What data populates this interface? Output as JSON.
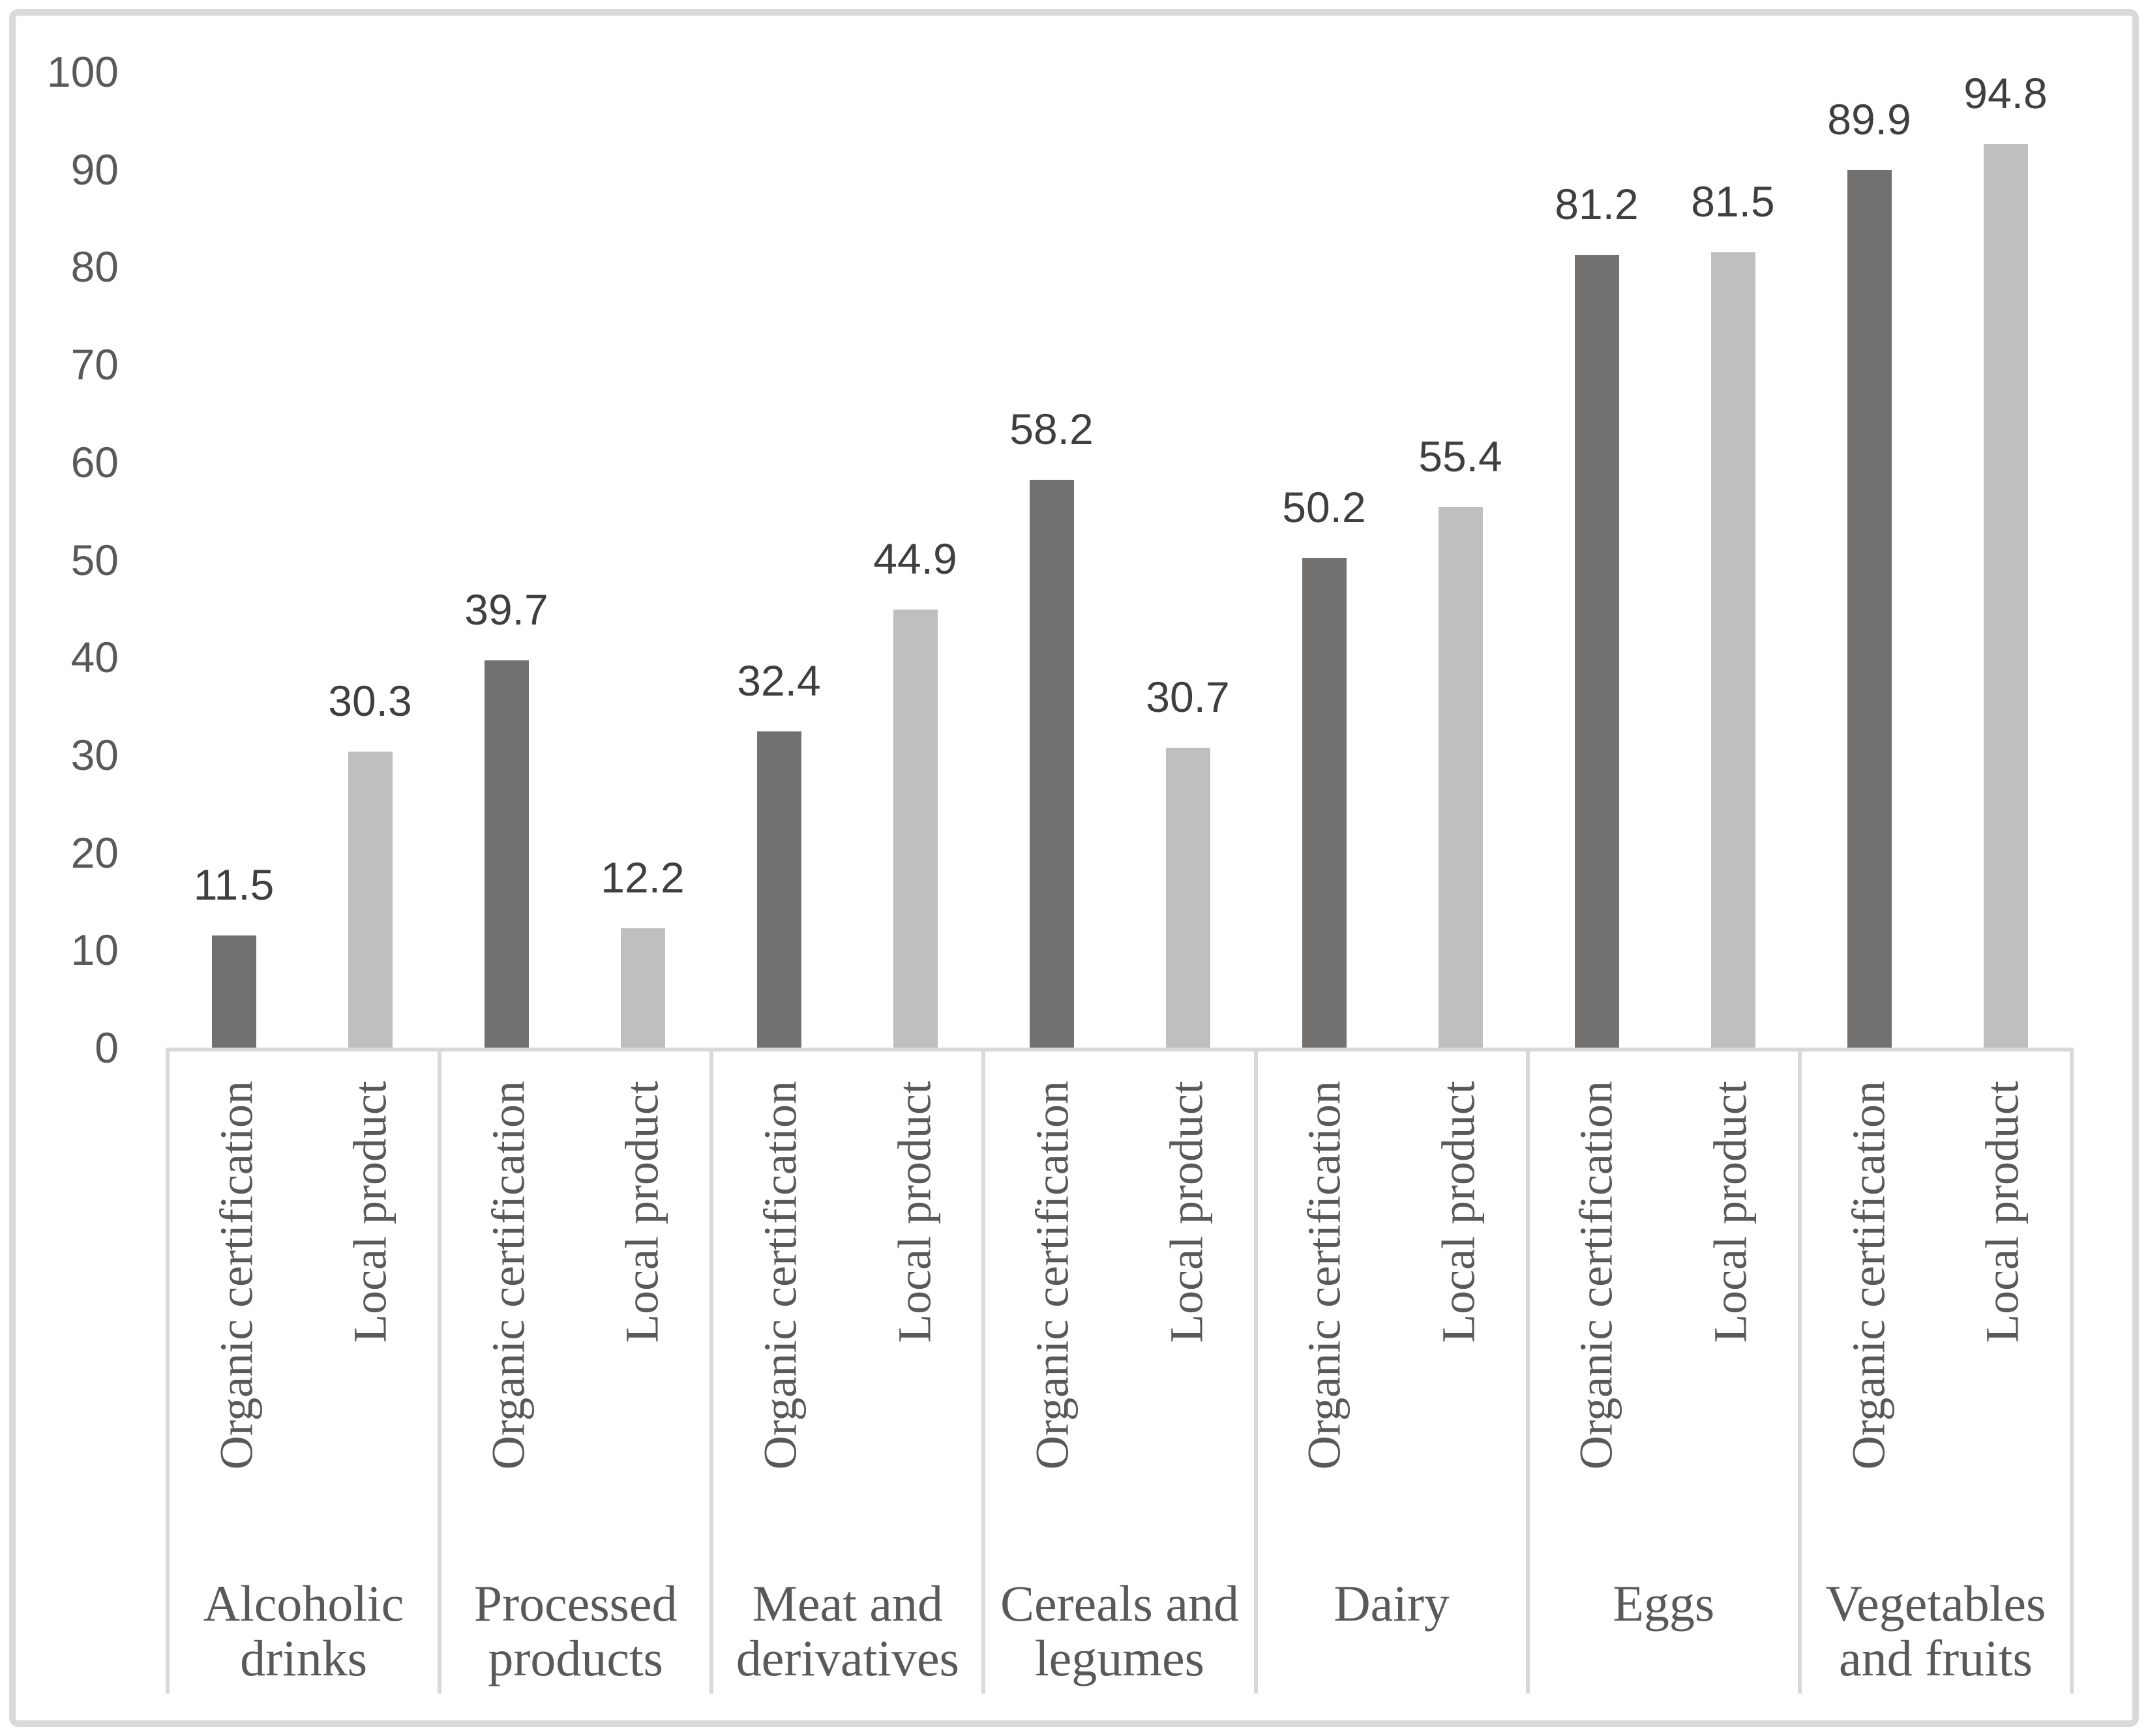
{
  "chart_data": {
    "type": "bar",
    "title": "",
    "xlabel": "",
    "ylabel": "",
    "categories": [
      "Alcoholic\ndrinks",
      "Processed\nproducts",
      "Meat and\nderivatives",
      "Cereals and\nlegumes",
      "Dairy",
      "Eggs",
      "Vegetables\nand fruits"
    ],
    "series": [
      {
        "name": "Organic certification",
        "color": "#737070",
        "values": [
          11.5,
          39.7,
          32.4,
          58.2,
          50.2,
          81.2,
          89.9
        ]
      },
      {
        "name": "Local product",
        "color": "#BFBFBF",
        "values": [
          30.3,
          12.2,
          44.9,
          30.7,
          55.4,
          81.5,
          94.8
        ]
      }
    ],
    "ylim": [
      0,
      100
    ],
    "y_ticks": [
      0,
      10,
      20,
      30,
      40,
      50,
      60,
      70,
      80,
      90,
      100
    ],
    "grid": false,
    "legend_position": "none",
    "bar_value_labels": true,
    "value_label_decimals": 1
  },
  "styles": {
    "axis_text_color": "#595959",
    "value_label_color": "#3F3F3F",
    "serif_text_color": "#595959",
    "line_color": "#D9D9D9",
    "frame_color": "#D9D9D9",
    "background": "#FFFFFF"
  }
}
